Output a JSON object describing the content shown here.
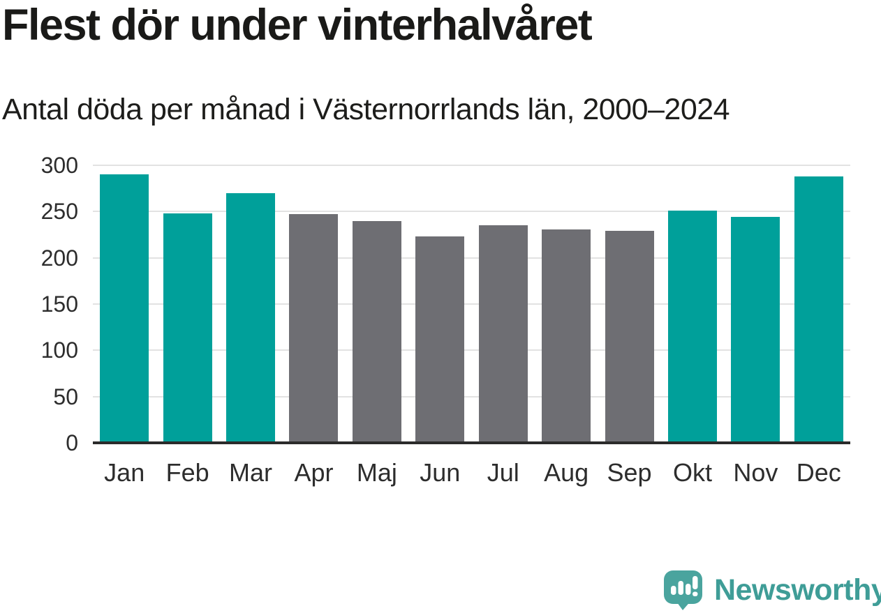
{
  "header": {
    "title": "Flest dör under vinterhalvåret",
    "subtitle": "Antal döda per månad i Västernorrlands län, 2000–2024"
  },
  "chart_data": {
    "type": "bar",
    "title": "Flest dör under vinterhalvåret",
    "subtitle": "Antal döda per månad i Västernorrlands län, 2000–2024",
    "categories": [
      "Jan",
      "Feb",
      "Mar",
      "Apr",
      "Maj",
      "Jun",
      "Jul",
      "Aug",
      "Sep",
      "Okt",
      "Nov",
      "Dec"
    ],
    "values": [
      290,
      248,
      270,
      247,
      240,
      223,
      235,
      231,
      229,
      251,
      244,
      288
    ],
    "bar_groups": [
      "winter",
      "winter",
      "winter",
      "summer",
      "summer",
      "summer",
      "summer",
      "summer",
      "summer",
      "winter",
      "winter",
      "winter"
    ],
    "bar_palette": {
      "winter": "#00a09a",
      "summer": "#6e6e73"
    },
    "xlabel": "",
    "ylabel": "",
    "ylim": [
      0,
      300
    ],
    "yticks": [
      0,
      50,
      100,
      150,
      200,
      250,
      300
    ],
    "grid": true,
    "legend": "none"
  },
  "branding": {
    "logo_text": "Newsworthy",
    "logo_color": "#4aa49e",
    "wordmark_color": "#3f9d97"
  }
}
